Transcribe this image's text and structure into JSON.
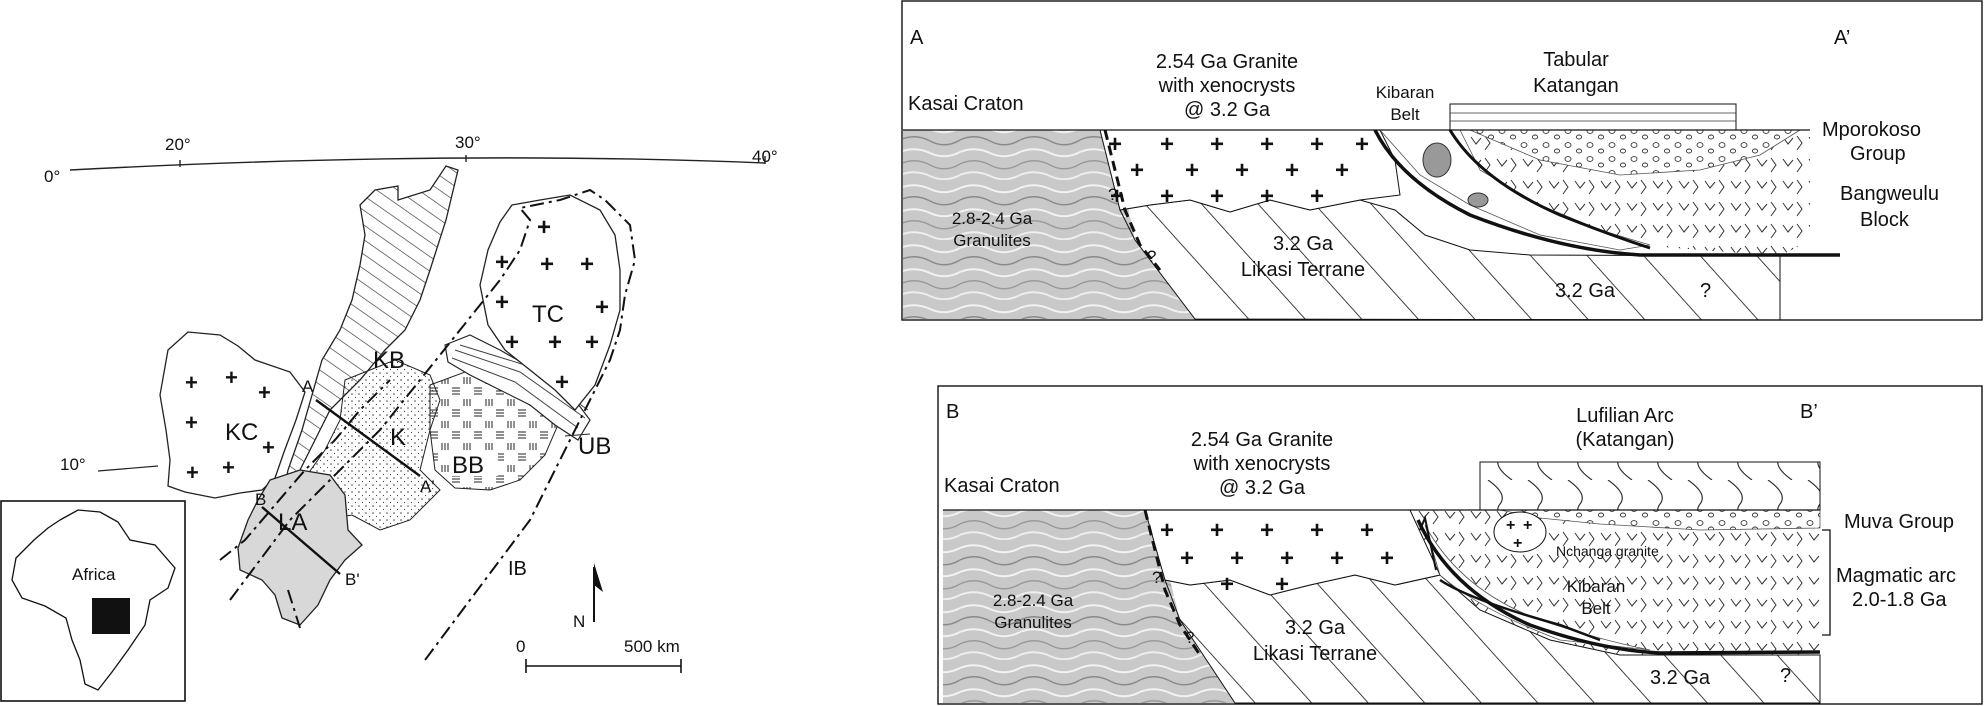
{
  "map": {
    "longitudes": [
      "0°",
      "20°",
      "30°",
      "40°"
    ],
    "latitude": "10°",
    "units": {
      "KC": "KC",
      "KB": "KB",
      "TC": "TC",
      "K": "K",
      "BB": "BB",
      "UB": "UB",
      "LA": "LA",
      "IB": "IB"
    },
    "section_ends": {
      "A": "A",
      "A_prime": "A'",
      "B": "B",
      "B_prime": "B'"
    },
    "inset_label": "Africa",
    "north_label": "N",
    "scale": {
      "start": "0",
      "end": "500 km"
    }
  },
  "section_a": {
    "left_end": "A",
    "right_end": "A’",
    "kasai_craton": "Kasai Craton",
    "granite": [
      "2.54 Ga Granite",
      "with xenocrysts",
      "@ 3.2 Ga"
    ],
    "kibaran": [
      "Kibaran",
      "Belt"
    ],
    "tabular": [
      "Tabular",
      "Katangan"
    ],
    "mporokoso": [
      "Mporokoso",
      "Group"
    ],
    "bangweulu": [
      "Bangweulu",
      "Block"
    ],
    "granulites": [
      "2.8-2.4 Ga",
      "Granulites"
    ],
    "likasi": [
      "3.2 Ga",
      "Likasi Terrane"
    ],
    "basement_age": "3.2 Ga",
    "question_marks": [
      "?",
      "?",
      "?"
    ]
  },
  "section_b": {
    "left_end": "B",
    "right_end": "B’",
    "kasai_craton": "Kasai Craton",
    "granite": [
      "2.54 Ga Granite",
      "with xenocrysts",
      "@ 3.2 Ga"
    ],
    "lufilian": [
      "Lufilian Arc",
      "(Katangan)"
    ],
    "muva": "Muva Group",
    "nchanga": "Nchanga granite",
    "kibaran": [
      "Kibaran",
      "Belt"
    ],
    "magmatic_arc": [
      "Magmatic arc",
      "2.0-1.8 Ga"
    ],
    "granulites": [
      "2.8-2.4 Ga",
      "Granulites"
    ],
    "likasi": [
      "3.2 Ga",
      "Likasi Terrane"
    ],
    "basement_age": "3.2 Ga",
    "question_marks": [
      "?",
      "?",
      "?"
    ]
  }
}
